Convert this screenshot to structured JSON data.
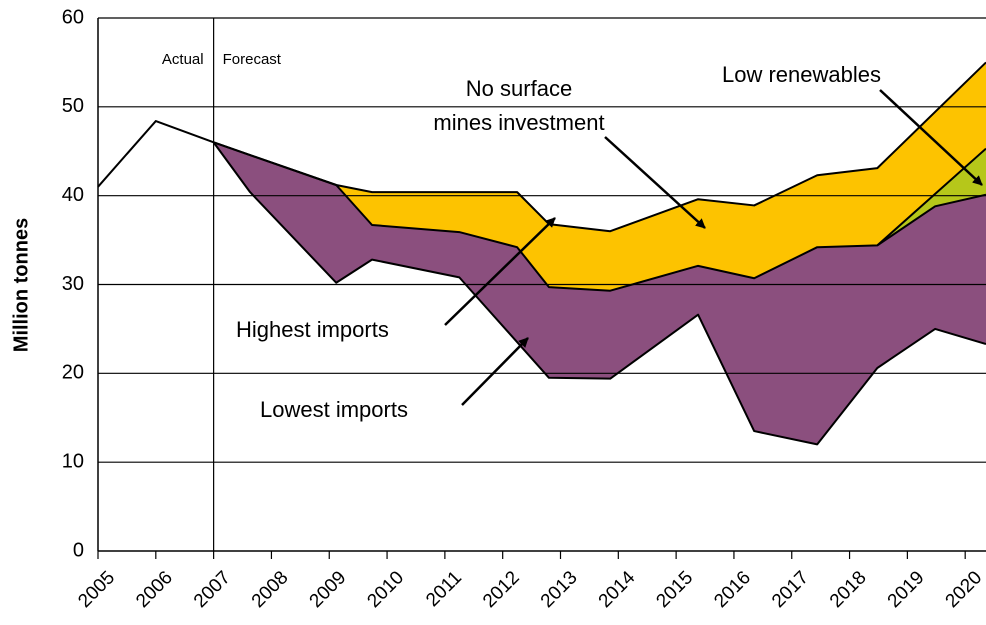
{
  "chart_data": {
    "type": "area",
    "ylabel": "Million tonnes",
    "xlim": [
      2005,
      2020.36
    ],
    "xticks": [
      2005,
      2006,
      2007,
      2008,
      2009,
      2010,
      2011,
      2012,
      2013,
      2014,
      2015,
      2016,
      2017,
      2018,
      2019,
      2020
    ],
    "ylim": [
      0,
      60
    ],
    "yticks": [
      0,
      10,
      20,
      30,
      40,
      50,
      60
    ],
    "grid": true,
    "line_color": "#000000",
    "forecast_start": 2007,
    "annotations": [
      "Actual",
      "Forecast"
    ],
    "actual": {
      "x": [
        2005,
        2006,
        2007
      ],
      "values": [
        41,
        48.4,
        46
      ]
    },
    "series": [
      {
        "name": "Lowest imports",
        "x": [
          2007,
          2007.63,
          2009.12,
          2009.74,
          2011.25,
          2012.8,
          2013.86,
          2015.38,
          2016.35,
          2017.44,
          2018.48,
          2019.48,
          2020.36
        ],
        "values": [
          46,
          40.4,
          30.2,
          32.8,
          30.8,
          19.5,
          19.4,
          26.6,
          13.5,
          12,
          20.6,
          25,
          23.3
        ]
      },
      {
        "name": "Highest imports",
        "color": "#8b4f7e",
        "x": [
          2007,
          2009.12,
          2009.74,
          2011.25,
          2012.25,
          2012.8,
          2013.86,
          2015.38,
          2016.35,
          2017.44,
          2018.48,
          2019.48,
          2020.36
        ],
        "values": [
          46,
          41.2,
          36.7,
          35.9,
          34.2,
          29.7,
          29.3,
          32.1,
          30.7,
          34.2,
          34.4,
          38.8,
          40.1
        ]
      },
      {
        "name": "No surface\nmines investment",
        "color": "#fdc300",
        "x": [
          2007,
          2009.12,
          2009.74,
          2011.25,
          2012.25,
          2012.8,
          2013.86,
          2015.38,
          2016.35,
          2017.44,
          2018.48,
          2020.36
        ],
        "values": [
          46,
          41.2,
          40.4,
          40.4,
          40.4,
          36.8,
          36,
          39.6,
          38.9,
          42.3,
          43.1,
          55
        ]
      },
      {
        "name": "Low renewables",
        "color": "#b6c71a",
        "x": [
          2018.48,
          2020.36
        ],
        "values": [
          34.4,
          45.3
        ]
      }
    ]
  }
}
